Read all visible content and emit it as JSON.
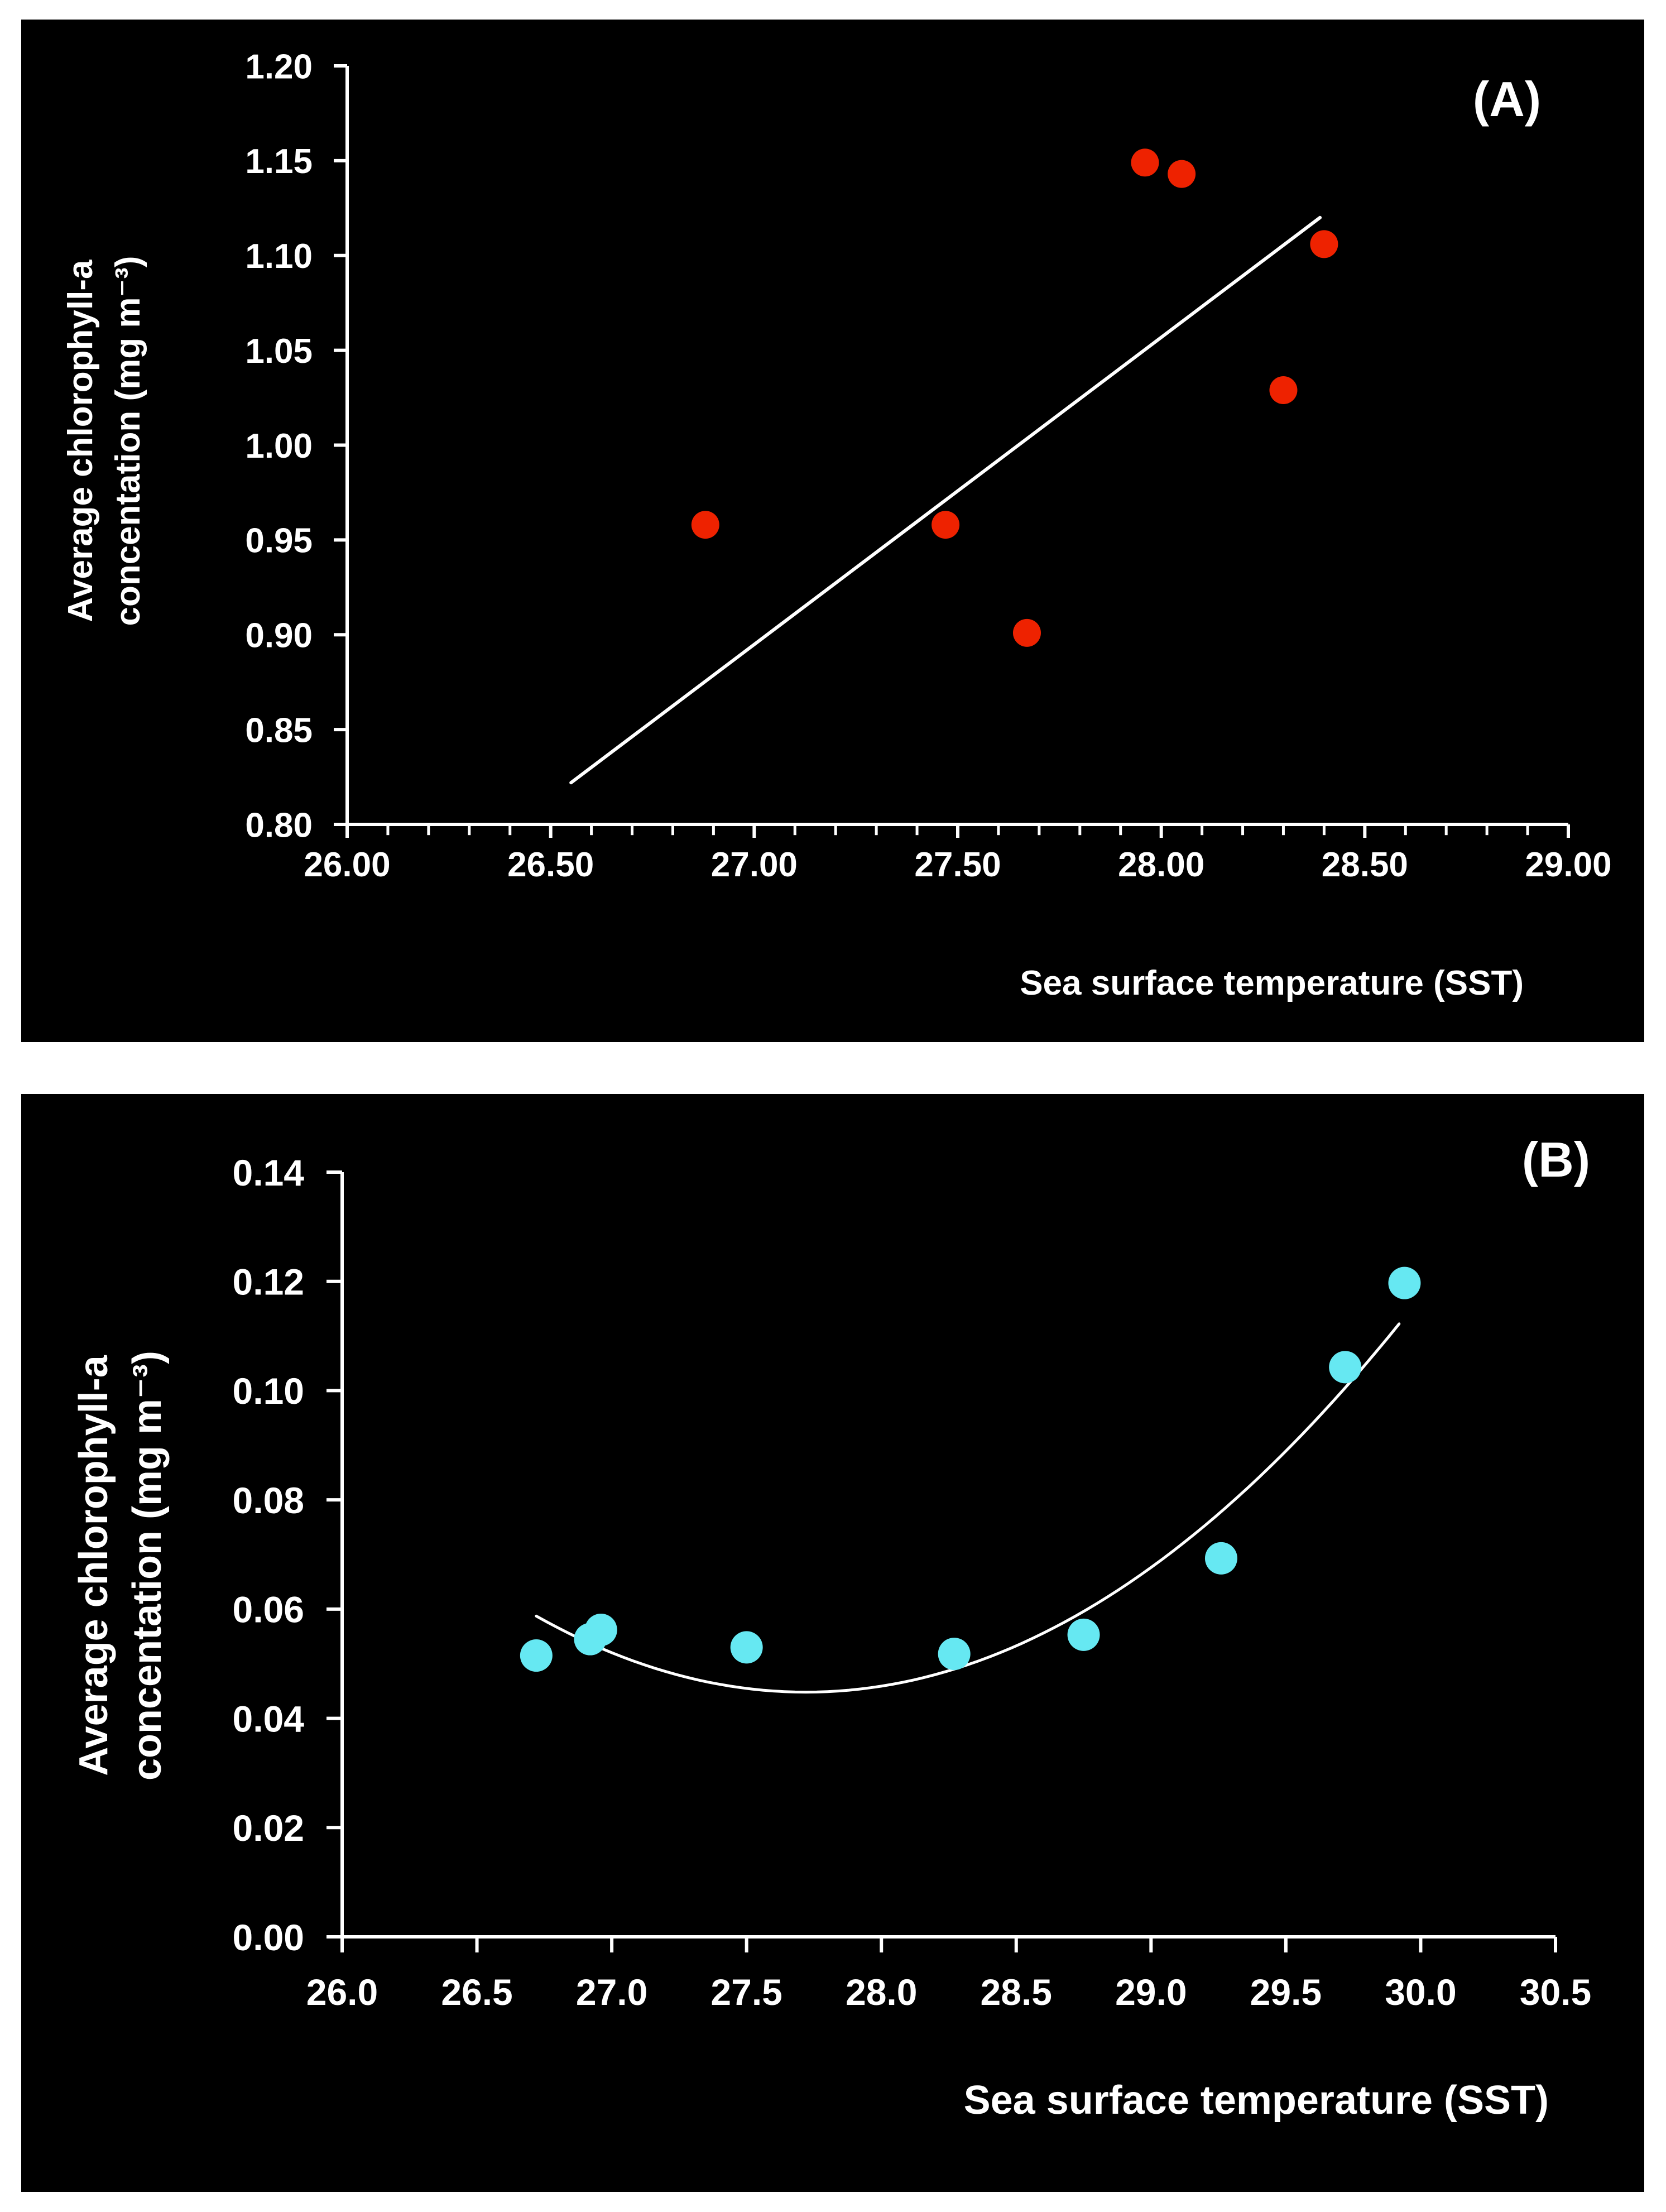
{
  "chart_data": [
    {
      "type": "scatter",
      "panel_label": "(A)",
      "xlabel": "Sea surface temperature (SST)",
      "ylabel_line1": "Average chlorophyll-a",
      "ylabel_line2": "concentation (mg m⁻³)",
      "xlim": [
        26.0,
        29.0
      ],
      "ylim": [
        0.8,
        1.2
      ],
      "x_ticks": [
        26.0,
        26.5,
        27.0,
        27.5,
        28.0,
        28.5,
        29.0
      ],
      "x_tick_labels": [
        "26.00",
        "26.50",
        "27.00",
        "27.50",
        "28.00",
        "28.50",
        "29.00"
      ],
      "y_ticks": [
        0.8,
        0.85,
        0.9,
        0.95,
        1.0,
        1.05,
        1.1,
        1.15,
        1.2
      ],
      "y_tick_labels": [
        "0.80",
        "0.85",
        "0.90",
        "0.95",
        "1.00",
        "1.05",
        "1.10",
        "1.15",
        "1.20"
      ],
      "grid": false,
      "point_color": "#ee2200",
      "fit_color": "#ffffff",
      "series": [
        {
          "name": "observations",
          "x": [
            26.88,
            27.47,
            27.67,
            27.96,
            28.05,
            28.3,
            28.4
          ],
          "y": [
            0.958,
            0.958,
            0.901,
            1.149,
            1.143,
            1.029,
            1.106
          ]
        }
      ],
      "fit": {
        "type": "linear",
        "x_range": [
          26.55,
          28.39
        ],
        "y_range": [
          0.822,
          1.12
        ]
      }
    },
    {
      "type": "scatter",
      "panel_label": "(B)",
      "xlabel": "Sea surface temperature (SST)",
      "ylabel_line1": "Average chlorophyll-a",
      "ylabel_line2": "concentation (mg m⁻³)",
      "xlim": [
        26.0,
        30.5
      ],
      "ylim": [
        0.0,
        0.14
      ],
      "x_ticks": [
        26.0,
        26.5,
        27.0,
        27.5,
        28.0,
        28.5,
        29.0,
        29.5,
        30.0,
        30.5
      ],
      "x_tick_labels": [
        "26.0",
        "26.5",
        "27.0",
        "27.5",
        "28.0",
        "28.5",
        "29.0",
        "29.5",
        "30.0",
        "30.5"
      ],
      "y_ticks": [
        0.0,
        0.02,
        0.04,
        0.06,
        0.08,
        0.1,
        0.12,
        0.14
      ],
      "y_tick_labels": [
        "0.00",
        "0.02",
        "0.04",
        "0.06",
        "0.08",
        "0.10",
        "0.12",
        "0.14"
      ],
      "grid": false,
      "point_color": "#66e8f2",
      "fit_color": "#ffffff",
      "series": [
        {
          "name": "observations",
          "x": [
            26.72,
            26.92,
            26.96,
            27.5,
            28.27,
            28.75,
            29.26,
            29.72,
            29.94
          ],
          "y": [
            0.0515,
            0.0545,
            0.0562,
            0.053,
            0.0518,
            0.0553,
            0.0693,
            0.1043,
            0.1197
          ]
        }
      ],
      "fit": {
        "type": "polynomial-2",
        "x_range": [
          26.72,
          29.92
        ],
        "vertex_x": 27.72,
        "vertex_y": 0.0448,
        "a": 0.01393
      }
    }
  ]
}
